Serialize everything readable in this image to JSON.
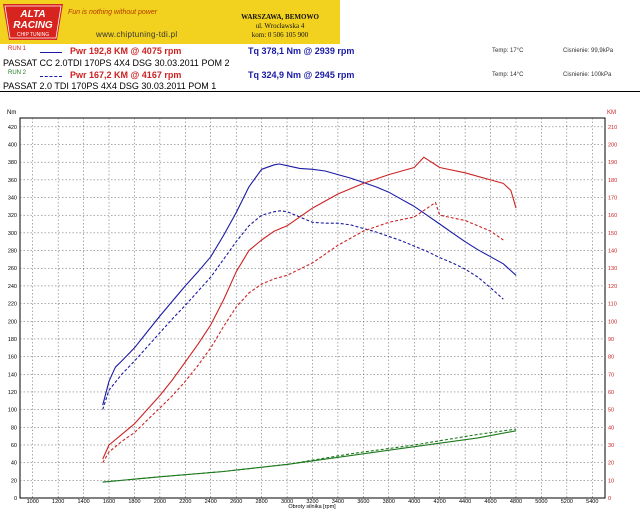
{
  "header": {
    "brand_line1": "ALTA",
    "brand_line2": "RACING",
    "brand_sub": "CHIP TUNING",
    "slogan": "Fun is nothing without power",
    "url": "www.chiptuning-tdi.pl",
    "address": [
      "WARSZAWA, BEMOWO",
      "ul. Wrocławska 4",
      "kom: 0 506 105 900"
    ]
  },
  "runs": [
    {
      "tag": "RUN 1",
      "pwr_label": "Pwr 192,8 KM @ 4075 rpm",
      "tq_label": "Tq 378,1 Nm @ 2939 rpm",
      "temp": "Temp: 17°C",
      "pressure": "Cisnienie: 99,9kPa",
      "name": "PASSAT CC 2.0TDI 170PS 4X4  DSG  30.03.2011  POM 2",
      "color": "#1a1aa6"
    },
    {
      "tag": "RUN 2",
      "pwr_label": "Pwr 167,2 KM @ 4167 rpm",
      "tq_label": "Tq 324,9 Nm @ 2945 rpm",
      "temp": "Temp: 14°C",
      "pressure": "Cisnienie: 100kPa",
      "name": "PASSAT  2.0  TDI  170PS 4X4  DSG  30.03.2011  POM 1",
      "color": "#cc2222"
    }
  ],
  "chart_data": {
    "type": "line",
    "xlabel": "Obroty silnika [rpm]",
    "ylabel_left": "Nm",
    "ylabel_right": "KM",
    "xlim": [
      900,
      5500
    ],
    "xticks": [
      1000,
      1200,
      1400,
      1600,
      1800,
      2000,
      2200,
      2400,
      2600,
      2800,
      3000,
      3200,
      3400,
      3600,
      3800,
      4000,
      4200,
      4400,
      4600,
      4800,
      5000,
      5200,
      5400
    ],
    "ylim_left": [
      0,
      430
    ],
    "yticks_left": [
      0,
      20,
      40,
      60,
      80,
      100,
      120,
      140,
      160,
      180,
      200,
      220,
      240,
      260,
      280,
      300,
      320,
      340,
      360,
      380,
      400,
      420
    ],
    "ylim_right": [
      0,
      215
    ],
    "yticks_right": [
      0,
      10,
      20,
      30,
      40,
      50,
      60,
      70,
      80,
      90,
      100,
      110,
      120,
      130,
      140,
      150,
      160,
      170,
      180,
      190,
      200,
      210,
      220
    ],
    "grid": true,
    "series": [
      {
        "name": "RUN 1",
        "quantity": "torque",
        "axis": "left",
        "style": "solid",
        "color": "#1a1aa6",
        "x": [
          1550,
          1600,
          1650,
          1700,
          1800,
          1900,
          2000,
          2100,
          2200,
          2300,
          2400,
          2500,
          2600,
          2700,
          2800,
          2900,
          2939,
          3000,
          3100,
          3200,
          3300,
          3400,
          3500,
          3600,
          3700,
          3800,
          3900,
          4000,
          4100,
          4200,
          4300,
          4400,
          4500,
          4600,
          4700,
          4800
        ],
        "y": [
          105,
          132,
          148,
          155,
          170,
          188,
          206,
          223,
          240,
          256,
          273,
          297,
          323,
          352,
          372,
          377,
          378,
          376,
          373,
          372,
          370,
          366,
          362,
          357,
          352,
          346,
          338,
          330,
          320,
          310,
          300,
          290,
          281,
          273,
          265,
          252
        ]
      },
      {
        "name": "RUN 2",
        "quantity": "torque",
        "axis": "left",
        "style": "dashed",
        "color": "#1a1aa6",
        "x": [
          1550,
          1600,
          1700,
          1800,
          1900,
          2000,
          2100,
          2200,
          2300,
          2400,
          2500,
          2600,
          2700,
          2800,
          2900,
          2945,
          3000,
          3100,
          3200,
          3300,
          3400,
          3500,
          3600,
          3700,
          3800,
          3900,
          4000,
          4100,
          4200,
          4300,
          4400,
          4500,
          4600,
          4700
        ],
        "y": [
          100,
          122,
          140,
          155,
          171,
          187,
          203,
          218,
          234,
          250,
          270,
          290,
          308,
          320,
          324,
          325,
          324,
          318,
          312,
          311,
          311,
          309,
          305,
          301,
          296,
          291,
          285,
          279,
          272,
          266,
          259,
          250,
          238,
          225
        ]
      },
      {
        "name": "RUN 1",
        "quantity": "power",
        "axis": "right",
        "style": "solid",
        "color": "#cc2222",
        "x": [
          1550,
          1600,
          1700,
          1800,
          1900,
          2000,
          2100,
          2200,
          2300,
          2400,
          2500,
          2600,
          2700,
          2800,
          2900,
          3000,
          3200,
          3400,
          3600,
          3800,
          4000,
          4075,
          4200,
          4400,
          4600,
          4700,
          4760,
          4800
        ],
        "y": [
          22,
          30,
          36,
          42,
          50,
          58,
          67,
          77,
          87,
          98,
          112,
          128,
          140,
          146,
          151,
          154,
          164,
          172,
          178,
          183,
          187,
          192.8,
          187,
          184,
          180,
          178,
          174,
          164
        ]
      },
      {
        "name": "RUN 2",
        "quantity": "power",
        "axis": "right",
        "style": "dashed",
        "color": "#cc2222",
        "x": [
          1550,
          1600,
          1700,
          1800,
          1900,
          2000,
          2100,
          2200,
          2300,
          2400,
          2500,
          2600,
          2700,
          2800,
          2900,
          3000,
          3200,
          3400,
          3600,
          3800,
          4000,
          4167,
          4200,
          4400,
          4600,
          4700
        ],
        "y": [
          20,
          26,
          32,
          37,
          44,
          51,
          58,
          66,
          75,
          85,
          97,
          108,
          116,
          121,
          124,
          126,
          133,
          143,
          151,
          156,
          159,
          167.2,
          160,
          157,
          151,
          146
        ]
      },
      {
        "name": "RUN 1",
        "quantity": "loss",
        "axis": "right",
        "style": "solid",
        "color": "#1e7a1e",
        "x": [
          1550,
          2000,
          2500,
          3000,
          3500,
          4000,
          4500,
          4800
        ],
        "y": [
          9,
          12,
          15,
          19,
          24,
          29,
          34,
          38
        ]
      },
      {
        "name": "RUN 2",
        "quantity": "loss",
        "axis": "right",
        "style": "dashed",
        "color": "#1e7a1e",
        "x": [
          1550,
          2000,
          2500,
          3000,
          3500,
          4000,
          4500,
          4800
        ],
        "y": [
          9,
          12,
          15,
          19,
          25,
          30,
          36,
          39
        ]
      }
    ]
  }
}
